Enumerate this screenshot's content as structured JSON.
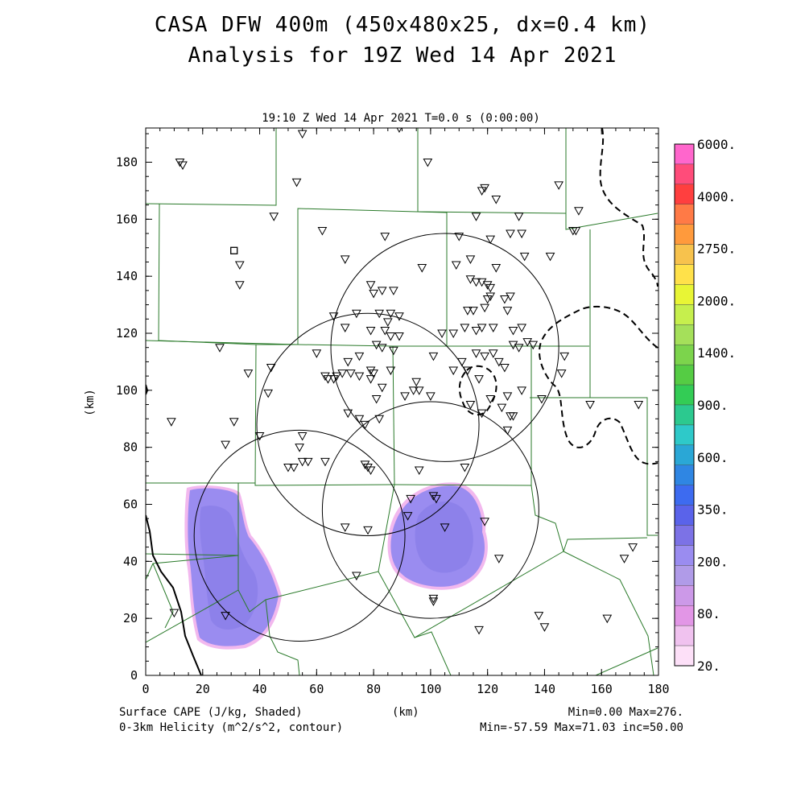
{
  "header": {
    "title_line1": "CASA DFW 400m (450x480x25, dx=0.4 km)",
    "title_line2": "Analysis for 19Z Wed 14 Apr 2021"
  },
  "plot": {
    "subtitle": "19:10 Z Wed 14 Apr 2021    T=0.0 s (0:00:00)",
    "xaxis": {
      "label": "(km)",
      "range": [
        0,
        180
      ],
      "ticks": [
        "0",
        "20",
        "40",
        "60",
        "80",
        "100",
        "120",
        "140",
        "160",
        "180"
      ]
    },
    "yaxis": {
      "label": "(km)",
      "range": [
        0,
        192
      ],
      "ticks": [
        "0",
        "20",
        "40",
        "60",
        "80",
        "100",
        "120",
        "140",
        "160",
        "180"
      ]
    }
  },
  "colorbar": {
    "labels": [
      "6000.",
      "4000.",
      "2750.",
      "2000.",
      "1400.",
      "900.",
      "600.",
      "350.",
      "200.",
      "80.",
      "20."
    ],
    "colors": [
      "#ff66cc",
      "#ff4c7a",
      "#ff3f3f",
      "#ff7a46",
      "#ff9a3c",
      "#f7c24d",
      "#ffe14a",
      "#e8f535",
      "#c6ef4d",
      "#a5e05a",
      "#7cd44c",
      "#55cc44",
      "#33cc55",
      "#2cc98f",
      "#2ec9c9",
      "#2aa7d6",
      "#2f86e3",
      "#3d6bf0",
      "#5a63ea",
      "#7c72e6",
      "#9a8cf0",
      "#b09be8",
      "#cc99e8",
      "#e296e6",
      "#f0c2ef",
      "#fde0f8"
    ]
  },
  "footer": {
    "left_line1": "Surface CAPE (J/kg, Shaded)",
    "left_line2": "0-3km Helicity (m^2/s^2, contour)",
    "center": "(km)",
    "right_line1": "Min=0.00 Max=276.",
    "right_line2": "Min=-57.59 Max=71.03 inc=50.00"
  },
  "map": {
    "radars_km": [
      {
        "x": 54,
        "y": 49,
        "r": 37
      },
      {
        "x": 78,
        "y": 88,
        "r": 39
      },
      {
        "x": 100,
        "y": 58,
        "r": 38
      },
      {
        "x": 105,
        "y": 115,
        "r": 40
      }
    ],
    "stations_km": [
      [
        12,
        180
      ],
      [
        13,
        179
      ],
      [
        55,
        190
      ],
      [
        89,
        192
      ],
      [
        53,
        173
      ],
      [
        99,
        180
      ],
      [
        119,
        171
      ],
      [
        118,
        170
      ],
      [
        145,
        172
      ],
      [
        123,
        167
      ],
      [
        152,
        163
      ],
      [
        45,
        161
      ],
      [
        62,
        156
      ],
      [
        84,
        154
      ],
      [
        150,
        156
      ],
      [
        151,
        156
      ],
      [
        110,
        154
      ],
      [
        121,
        153
      ],
      [
        128,
        155
      ],
      [
        132,
        155
      ],
      [
        131,
        161
      ],
      [
        116,
        161
      ],
      [
        33,
        144
      ],
      [
        33,
        137
      ],
      [
        70,
        146
      ],
      [
        97,
        143
      ],
      [
        109,
        144
      ],
      [
        114,
        146
      ],
      [
        142,
        147
      ],
      [
        133,
        147
      ],
      [
        123,
        143
      ],
      [
        114,
        139
      ],
      [
        116,
        138
      ],
      [
        118,
        138
      ],
      [
        120,
        137
      ],
      [
        121,
        136
      ],
      [
        79,
        137
      ],
      [
        80,
        134
      ],
      [
        83,
        135
      ],
      [
        87,
        135
      ],
      [
        113,
        128
      ],
      [
        115,
        128
      ],
      [
        119,
        129
      ],
      [
        120,
        132
      ],
      [
        121,
        133
      ],
      [
        126,
        132
      ],
      [
        128,
        133
      ],
      [
        127,
        128
      ],
      [
        74,
        127
      ],
      [
        82,
        127
      ],
      [
        86,
        127
      ],
      [
        89,
        126
      ],
      [
        66,
        126
      ],
      [
        70,
        122
      ],
      [
        79,
        121
      ],
      [
        84,
        121
      ],
      [
        85,
        124
      ],
      [
        86,
        119
      ],
      [
        89,
        119
      ],
      [
        81,
        116
      ],
      [
        75,
        112
      ],
      [
        83,
        115
      ],
      [
        87,
        114
      ],
      [
        104,
        120
      ],
      [
        108,
        120
      ],
      [
        112,
        122
      ],
      [
        116,
        121
      ],
      [
        118,
        122
      ],
      [
        122,
        122
      ],
      [
        129,
        121
      ],
      [
        132,
        122
      ],
      [
        134,
        117
      ],
      [
        136,
        116
      ],
      [
        129,
        116
      ],
      [
        131,
        115
      ],
      [
        116,
        113
      ],
      [
        119,
        112
      ],
      [
        122,
        113
      ],
      [
        124,
        110
      ],
      [
        126,
        108
      ],
      [
        111,
        110
      ],
      [
        113,
        107
      ],
      [
        117,
        104
      ],
      [
        108,
        107
      ],
      [
        101,
        112
      ],
      [
        147,
        112
      ],
      [
        26,
        115
      ],
      [
        36,
        106
      ],
      [
        60,
        113
      ],
      [
        63,
        105
      ],
      [
        64,
        104
      ],
      [
        66,
        104
      ],
      [
        67,
        105
      ],
      [
        69,
        106
      ],
      [
        71,
        110
      ],
      [
        72,
        106
      ],
      [
        75,
        105
      ],
      [
        79,
        107
      ],
      [
        80,
        106
      ],
      [
        79,
        104
      ],
      [
        83,
        101
      ],
      [
        86,
        107
      ],
      [
        95,
        103
      ],
      [
        96,
        100
      ],
      [
        44,
        108
      ],
      [
        43,
        99
      ],
      [
        91,
        98
      ],
      [
        94,
        100
      ],
      [
        81,
        97
      ],
      [
        100,
        98
      ],
      [
        114,
        95
      ],
      [
        121,
        97
      ],
      [
        127,
        98
      ],
      [
        125,
        94
      ],
      [
        129,
        91
      ],
      [
        132,
        100
      ],
      [
        139,
        97
      ],
      [
        146,
        106
      ],
      [
        156,
        95
      ],
      [
        173,
        95
      ],
      [
        9,
        89
      ],
      [
        31,
        89
      ],
      [
        28,
        81
      ],
      [
        40,
        84
      ],
      [
        55,
        84
      ],
      [
        54,
        80
      ],
      [
        55,
        75
      ],
      [
        57,
        75
      ],
      [
        63,
        75
      ],
      [
        50,
        73
      ],
      [
        52,
        73
      ],
      [
        77,
        74
      ],
      [
        78,
        73
      ],
      [
        79,
        72
      ],
      [
        75,
        90
      ],
      [
        77,
        88
      ],
      [
        82,
        90
      ],
      [
        71,
        92
      ],
      [
        96,
        72
      ],
      [
        112,
        73
      ],
      [
        118,
        92
      ],
      [
        127,
        86
      ],
      [
        128,
        91
      ],
      [
        93,
        62
      ],
      [
        101,
        63
      ],
      [
        102,
        62
      ],
      [
        92,
        56
      ],
      [
        105,
        52
      ],
      [
        119,
        54
      ],
      [
        78,
        51
      ],
      [
        70,
        52
      ],
      [
        124,
        41
      ],
      [
        74,
        35
      ],
      [
        168,
        41
      ],
      [
        171,
        45
      ],
      [
        10,
        22
      ],
      [
        28,
        21
      ],
      [
        101,
        27
      ],
      [
        101,
        26
      ],
      [
        117,
        16
      ],
      [
        138,
        21
      ],
      [
        140,
        17
      ],
      [
        162,
        20
      ]
    ],
    "square_km": [
      31,
      149
    ]
  }
}
